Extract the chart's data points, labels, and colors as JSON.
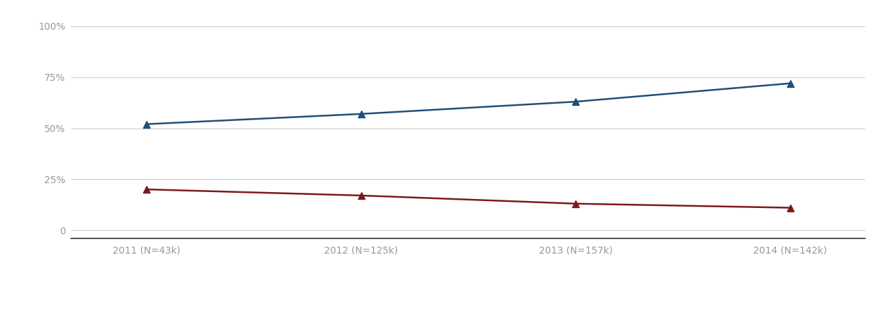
{
  "x_labels": [
    "2011 (N=43k)",
    "2012 (N=125k)",
    "2013 (N=157k)",
    "2014 (N=142k)"
  ],
  "x_values": [
    0,
    1,
    2,
    3
  ],
  "blue_values": [
    0.52,
    0.57,
    0.63,
    0.72
  ],
  "red_values": [
    0.2,
    0.17,
    0.13,
    0.11
  ],
  "blue_color": "#1F4E79",
  "red_color": "#7B1A1A",
  "yticks": [
    0,
    0.25,
    0.5,
    0.75,
    1.0
  ],
  "ytick_labels": [
    "0",
    "25%",
    "50%",
    "75%",
    "100%"
  ],
  "ylim": [
    -0.04,
    1.08
  ],
  "grid_color": "#cccccc",
  "background_color": "#ffffff",
  "tick_color": "#999999",
  "bottom_spine_color": "#333333",
  "label_fontsize": 10,
  "legend_fontsize": 9,
  "marker": "^",
  "marker_size": 7,
  "linewidth": 1.8
}
